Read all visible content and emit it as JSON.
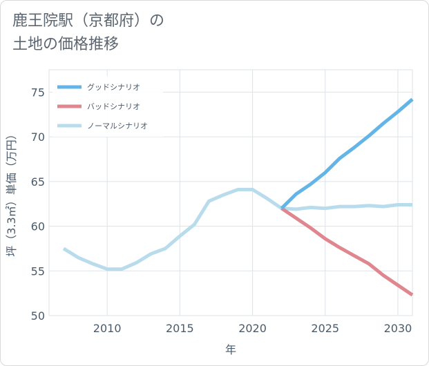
{
  "title": "鹿王院駅（京都府）の\n土地の価格推移",
  "chart_data": {
    "type": "line",
    "xlabel": "年",
    "ylabel": "坪（3.3㎡）単価（万円）",
    "xlim": [
      2006,
      2031
    ],
    "ylim": [
      50,
      77.5
    ],
    "xticks": [
      2010,
      2015,
      2020,
      2025,
      2030
    ],
    "yticks": [
      50,
      55,
      60,
      65,
      70,
      75
    ],
    "grid": true,
    "legend_position": "top-left",
    "series": [
      {
        "name": "ノーマルシナリオ",
        "color": "#b9dcec",
        "x": [
          2007,
          2008,
          2009,
          2010,
          2011,
          2012,
          2013,
          2014,
          2015,
          2016,
          2017,
          2018,
          2019,
          2020,
          2021,
          2022,
          2023,
          2024,
          2025,
          2026,
          2027,
          2028,
          2029,
          2030,
          2031
        ],
        "y": [
          57.5,
          56.5,
          55.8,
          55.2,
          55.2,
          55.9,
          56.9,
          57.5,
          58.9,
          60.2,
          62.8,
          63.5,
          64.1,
          64.1,
          63.1,
          62.0,
          61.9,
          62.1,
          62.0,
          62.2,
          62.2,
          62.3,
          62.2,
          62.4,
          62.4
        ]
      },
      {
        "name": "バッドシナリオ",
        "color": "#e0868f",
        "x": [
          2022,
          2023,
          2024,
          2025,
          2026,
          2027,
          2028,
          2029,
          2030,
          2031
        ],
        "y": [
          62.0,
          60.9,
          59.8,
          58.6,
          57.6,
          56.7,
          55.8,
          54.5,
          53.4,
          52.3
        ]
      },
      {
        "name": "グッドシナリオ",
        "color": "#63b5e8",
        "x": [
          2022,
          2023,
          2024,
          2025,
          2026,
          2027,
          2028,
          2029,
          2030,
          2031
        ],
        "y": [
          62.0,
          63.6,
          64.7,
          66.0,
          67.6,
          68.8,
          70.1,
          71.5,
          72.8,
          74.2
        ]
      }
    ],
    "legend": [
      {
        "label": "グッドシナリオ",
        "color": "#63b5e8"
      },
      {
        "label": "バッドシナリオ",
        "color": "#e0868f"
      },
      {
        "label": "ノーマルシナリオ",
        "color": "#b9dcec"
      }
    ]
  }
}
